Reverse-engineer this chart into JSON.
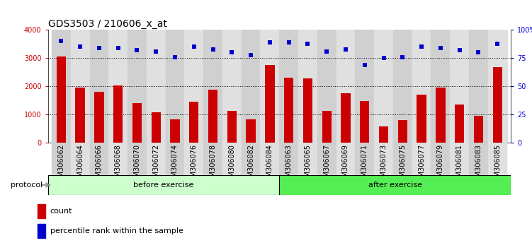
{
  "title": "GDS3503 / 210606_x_at",
  "categories": [
    "GSM306062",
    "GSM306064",
    "GSM306066",
    "GSM306068",
    "GSM306070",
    "GSM306072",
    "GSM306074",
    "GSM306076",
    "GSM306078",
    "GSM306080",
    "GSM306082",
    "GSM306084",
    "GSM306063",
    "GSM306065",
    "GSM306067",
    "GSM306069",
    "GSM306071",
    "GSM306073",
    "GSM306075",
    "GSM306077",
    "GSM306079",
    "GSM306081",
    "GSM306083",
    "GSM306085"
  ],
  "count_values": [
    3060,
    1950,
    1800,
    2020,
    1400,
    1080,
    820,
    1440,
    1890,
    1130,
    820,
    2760,
    2300,
    2280,
    1130,
    1740,
    1480,
    560,
    790,
    1700,
    1950,
    1360,
    960,
    2680
  ],
  "percentile_values": [
    90,
    85,
    84,
    84,
    82,
    81,
    76,
    85,
    83,
    80,
    78,
    89,
    89,
    88,
    81,
    83,
    69,
    75,
    76,
    85,
    84,
    82,
    80,
    88
  ],
  "bar_color": "#cc0000",
  "dot_color": "#0000cc",
  "ylim_left": [
    0,
    4000
  ],
  "ylim_right": [
    0,
    100
  ],
  "yticks_left": [
    0,
    1000,
    2000,
    3000,
    4000
  ],
  "ytick_labels_left": [
    "0",
    "1000",
    "2000",
    "3000",
    "4000"
  ],
  "yticks_right": [
    0,
    25,
    50,
    75,
    100
  ],
  "ytick_labels_right": [
    "0",
    "25",
    "50",
    "75",
    "100%"
  ],
  "grid_lines": [
    1000,
    2000,
    3000
  ],
  "before_exercise_count": 12,
  "after_exercise_count": 12,
  "protocol_label": "protocol",
  "before_label": "before exercise",
  "after_label": "after exercise",
  "before_color": "#ccffcc",
  "after_color": "#55ee55",
  "legend_count_label": "count",
  "legend_pct_label": "percentile rank within the sample",
  "bg_color": "#ffffff",
  "plot_bg_color": "#ffffff",
  "title_fontsize": 10,
  "tick_fontsize": 7,
  "axis_label_color_left": "#cc0000",
  "axis_label_color_right": "#0000cc",
  "col_bg_even": "#d0d0d0",
  "col_bg_odd": "#e0e0e0"
}
